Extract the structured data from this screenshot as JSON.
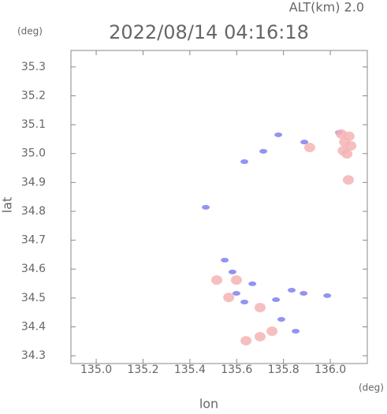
{
  "chart_data": {
    "type": "scatter",
    "title": "2022/08/14 04:16:18",
    "subtitle": "ALT(km) 2.0",
    "x_label": "lon",
    "y_label": "lat",
    "x_unit": "(deg)",
    "y_unit": "(deg)",
    "xlim": [
      134.892,
      136.158
    ],
    "ylim": [
      34.273,
      35.357
    ],
    "xticks": [
      {
        "value": 135.0,
        "label": "135.0"
      },
      135.2,
      135.4,
      135.6,
      135.8,
      {
        "value": 136.0,
        "label": "136.0"
      }
    ],
    "yticks": [
      34.3,
      34.4,
      34.5,
      34.6,
      34.7,
      34.8,
      34.9,
      {
        "value": 35.0,
        "label": "35.0"
      },
      35.1,
      35.2,
      35.3
    ],
    "series": [
      {
        "color": "#8080f0",
        "x": [
          135.778,
          135.714,
          135.633,
          135.889,
          135.468,
          135.549,
          135.582,
          135.599,
          135.633,
          135.768,
          135.835,
          135.886,
          135.987,
          135.791,
          135.852,
          136.037,
          135.667
        ],
        "values": [
          35.065,
          35.008,
          34.972,
          35.04,
          34.814,
          34.631,
          34.59,
          34.516,
          34.486,
          34.494,
          34.527,
          34.516,
          34.508,
          34.426,
          34.385,
          35.073,
          34.549
        ]
      },
      {
        "color": "#f4b4b4",
        "x": [
          136.061,
          136.071,
          136.047,
          136.088,
          136.077,
          136.055,
          136.08,
          135.912,
          135.566,
          135.599,
          135.7,
          135.64,
          135.7,
          135.751,
          135.515
        ],
        "values": [
          35.04,
          34.999,
          35.068,
          35.027,
          34.909,
          35.01,
          35.06,
          35.021,
          34.502,
          34.562,
          34.467,
          34.352,
          34.366,
          34.385,
          34.562
        ]
      }
    ]
  }
}
